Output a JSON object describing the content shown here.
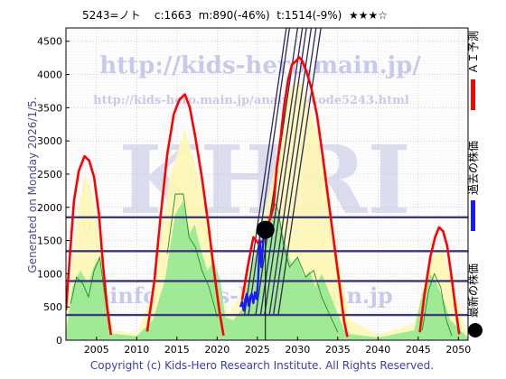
{
  "header": {
    "text": "5243=ノト    c:1663  m:890(-46%)  t:1514(-9%)  ★★★☆"
  },
  "side_note": "Generated on Monday 2026/1/5.",
  "footer": {
    "copyright": "Copyright (c) Kids-Hero Research Institute. All Rights Reserved."
  },
  "watermarks": {
    "url1": "http://kids-hero.main.jp/",
    "url2": "http://kids-hero.main.jp/analysis/code5243.html",
    "big": "KHRI",
    "email": "info@kids-hero.main.jp"
  },
  "legend": {
    "forecast": "ＡＩ予測",
    "past": "過去の株価",
    "latest": "最新の株価"
  },
  "colors": {
    "forecast": "#ff0000",
    "past": "#1a1aff",
    "latest": "#000000",
    "fill_yellow": "#fff7b0",
    "fill_green": "#8fe68f",
    "hline": "#3a3a78",
    "trend": "#2a2a55"
  },
  "chart_data": {
    "type": "line",
    "xlim": [
      2001.2,
      2051.2
    ],
    "ylim": [
      0,
      4700
    ],
    "x_ticks": [
      2005,
      2010,
      2015,
      2020,
      2025,
      2030,
      2035,
      2040,
      2045,
      2050
    ],
    "y_ticks": [
      0,
      500,
      1000,
      1500,
      2000,
      2500,
      3000,
      3500,
      4000,
      4500
    ],
    "grid": true,
    "legend_position": "right",
    "horizontal_levels": [
      380,
      890,
      1340,
      1850
    ],
    "current_point": {
      "x": 2026.0,
      "y": 1663
    },
    "forecast_series": [
      [
        [
          2001.2,
          450
        ],
        [
          2001.7,
          1300
        ],
        [
          2002.2,
          2100
        ],
        [
          2002.8,
          2550
        ],
        [
          2003.5,
          2770
        ],
        [
          2004.1,
          2700
        ],
        [
          2004.7,
          2450
        ],
        [
          2005.3,
          1900
        ],
        [
          2005.8,
          1150
        ],
        [
          2006.3,
          520
        ],
        [
          2006.8,
          80
        ]
      ],
      [
        [
          2011.3,
          130
        ],
        [
          2012.2,
          900
        ],
        [
          2013.0,
          1900
        ],
        [
          2013.8,
          2800
        ],
        [
          2014.6,
          3400
        ],
        [
          2015.3,
          3620
        ],
        [
          2016.0,
          3700
        ],
        [
          2016.6,
          3500
        ],
        [
          2017.3,
          3050
        ],
        [
          2018.1,
          2450
        ],
        [
          2018.9,
          1750
        ],
        [
          2019.6,
          1050
        ],
        [
          2020.3,
          420
        ],
        [
          2020.8,
          70
        ]
      ],
      [
        [
          2023.1,
          600
        ],
        [
          2023.8,
          1100
        ],
        [
          2024.5,
          1550
        ],
        [
          2025.2,
          1450
        ],
        [
          2025.7,
          1500
        ],
        [
          2026.1,
          1663
        ],
        [
          2026.5,
          1800
        ],
        [
          2027.0,
          2000
        ],
        [
          2027.4,
          2600
        ],
        [
          2027.9,
          3050
        ],
        [
          2028.3,
          3500
        ],
        [
          2028.8,
          3900
        ],
        [
          2029.3,
          4150
        ],
        [
          2029.8,
          4200
        ],
        [
          2030.2,
          4260
        ],
        [
          2030.6,
          4200
        ],
        [
          2031.1,
          4050
        ],
        [
          2031.7,
          3800
        ],
        [
          2032.4,
          3400
        ],
        [
          2033.1,
          2800
        ],
        [
          2033.8,
          2150
        ],
        [
          2034.5,
          1500
        ],
        [
          2035.2,
          850
        ],
        [
          2035.8,
          280
        ],
        [
          2036.2,
          50
        ]
      ],
      [
        [
          2045.2,
          120
        ],
        [
          2045.8,
          700
        ],
        [
          2046.5,
          1250
        ],
        [
          2047.1,
          1550
        ],
        [
          2047.6,
          1700
        ],
        [
          2048.1,
          1640
        ],
        [
          2048.6,
          1420
        ],
        [
          2049.1,
          1000
        ],
        [
          2049.6,
          520
        ],
        [
          2050.1,
          90
        ]
      ]
    ],
    "yellow_band": [
      [
        2001.2,
        200
      ],
      [
        2002.5,
        1800
      ],
      [
        2003.5,
        2500
      ],
      [
        2004.5,
        2200
      ],
      [
        2006.0,
        900
      ],
      [
        2007.0,
        150
      ],
      [
        2010.0,
        100
      ],
      [
        2012.0,
        700
      ],
      [
        2014.0,
        2400
      ],
      [
        2016.0,
        3200
      ],
      [
        2018.0,
        2300
      ],
      [
        2020.0,
        800
      ],
      [
        2021.5,
        400
      ],
      [
        2023.0,
        700
      ],
      [
        2025.0,
        1500
      ],
      [
        2027.0,
        2500
      ],
      [
        2029.0,
        3800
      ],
      [
        2030.5,
        3900
      ],
      [
        2032.5,
        3100
      ],
      [
        2034.5,
        1600
      ],
      [
        2036.5,
        300
      ],
      [
        2040.0,
        80
      ],
      [
        2044.5,
        250
      ],
      [
        2046.5,
        1200
      ],
      [
        2048.0,
        1450
      ],
      [
        2049.5,
        700
      ],
      [
        2051.2,
        60
      ]
    ],
    "green_band": [
      [
        2001.2,
        100
      ],
      [
        2002.0,
        800
      ],
      [
        2003.0,
        1050
      ],
      [
        2004.0,
        850
      ],
      [
        2004.6,
        1100
      ],
      [
        2005.4,
        1250
      ],
      [
        2006.2,
        600
      ],
      [
        2006.8,
        100
      ],
      [
        2010.0,
        60
      ],
      [
        2012.0,
        300
      ],
      [
        2013.5,
        900
      ],
      [
        2014.8,
        1900
      ],
      [
        2015.8,
        2100
      ],
      [
        2016.6,
        1600
      ],
      [
        2017.2,
        1750
      ],
      [
        2018.0,
        1350
      ],
      [
        2018.8,
        1050
      ],
      [
        2019.6,
        1200
      ],
      [
        2020.4,
        900
      ],
      [
        2021.0,
        350
      ],
      [
        2022.0,
        300
      ],
      [
        2023.0,
        450
      ],
      [
        2024.0,
        1000
      ],
      [
        2025.0,
        1400
      ],
      [
        2026.0,
        1750
      ],
      [
        2027.0,
        2050
      ],
      [
        2027.8,
        1800
      ],
      [
        2028.5,
        1450
      ],
      [
        2029.2,
        1150
      ],
      [
        2030.0,
        1250
      ],
      [
        2030.8,
        950
      ],
      [
        2031.5,
        1050
      ],
      [
        2032.2,
        800
      ],
      [
        2033.0,
        1000
      ],
      [
        2034.0,
        700
      ],
      [
        2035.0,
        400
      ],
      [
        2036.0,
        100
      ],
      [
        2040.0,
        40
      ],
      [
        2044.5,
        150
      ],
      [
        2045.5,
        700
      ],
      [
        2046.5,
        1000
      ],
      [
        2047.3,
        850
      ],
      [
        2048.2,
        600
      ],
      [
        2049.0,
        300
      ],
      [
        2051.2,
        40
      ]
    ],
    "thin_green_lines": [
      [
        [
          2001.8,
          550
        ],
        [
          2002.5,
          950
        ],
        [
          2003.3,
          850
        ],
        [
          2004.0,
          650
        ],
        [
          2004.7,
          1050
        ],
        [
          2005.4,
          1250
        ],
        [
          2006.0,
          700
        ],
        [
          2006.6,
          150
        ]
      ],
      [
        [
          2013.8,
          1300
        ],
        [
          2014.8,
          2200
        ],
        [
          2015.8,
          2200
        ],
        [
          2016.5,
          1550
        ],
        [
          2017.3,
          1400
        ],
        [
          2018.1,
          1050
        ],
        [
          2019.0,
          800
        ],
        [
          2020.0,
          350
        ]
      ],
      [
        [
          2027.0,
          2100
        ],
        [
          2027.6,
          1950
        ],
        [
          2028.3,
          1400
        ],
        [
          2029.0,
          1100
        ],
        [
          2030.0,
          1250
        ],
        [
          2031.0,
          950
        ],
        [
          2032.0,
          1050
        ],
        [
          2033.0,
          650
        ],
        [
          2034.0,
          380
        ],
        [
          2035.0,
          120
        ]
      ],
      [
        [
          2045.5,
          150
        ],
        [
          2046.3,
          750
        ],
        [
          2047.0,
          1000
        ],
        [
          2047.8,
          800
        ],
        [
          2048.5,
          300
        ],
        [
          2049.2,
          60
        ]
      ]
    ],
    "past_series": [
      [
        2022.9,
        500
      ],
      [
        2023.1,
        580
      ],
      [
        2023.3,
        450
      ],
      [
        2023.5,
        620
      ],
      [
        2023.7,
        700
      ],
      [
        2023.9,
        520
      ],
      [
        2024.1,
        650
      ],
      [
        2024.3,
        700
      ],
      [
        2024.5,
        560
      ],
      [
        2024.7,
        720
      ],
      [
        2024.9,
        620
      ],
      [
        2025.1,
        900
      ],
      [
        2025.3,
        1500
      ],
      [
        2025.5,
        1100
      ],
      [
        2025.7,
        1450
      ],
      [
        2025.9,
        1663
      ]
    ],
    "trend_lines": [
      [
        [
          2023.4,
          380
        ],
        [
          2028.6,
          4700
        ]
      ],
      [
        [
          2023.9,
          380
        ],
        [
          2029.0,
          4700
        ]
      ],
      [
        [
          2024.8,
          380
        ],
        [
          2030.0,
          4700
        ]
      ],
      [
        [
          2025.4,
          380
        ],
        [
          2030.6,
          4700
        ]
      ],
      [
        [
          2025.9,
          380
        ],
        [
          2031.1,
          4700
        ]
      ],
      [
        [
          2026.5,
          380
        ],
        [
          2031.7,
          4700
        ]
      ],
      [
        [
          2027.0,
          380
        ],
        [
          2032.3,
          4700
        ]
      ],
      [
        [
          2027.6,
          380
        ],
        [
          2032.9,
          4700
        ]
      ]
    ]
  }
}
